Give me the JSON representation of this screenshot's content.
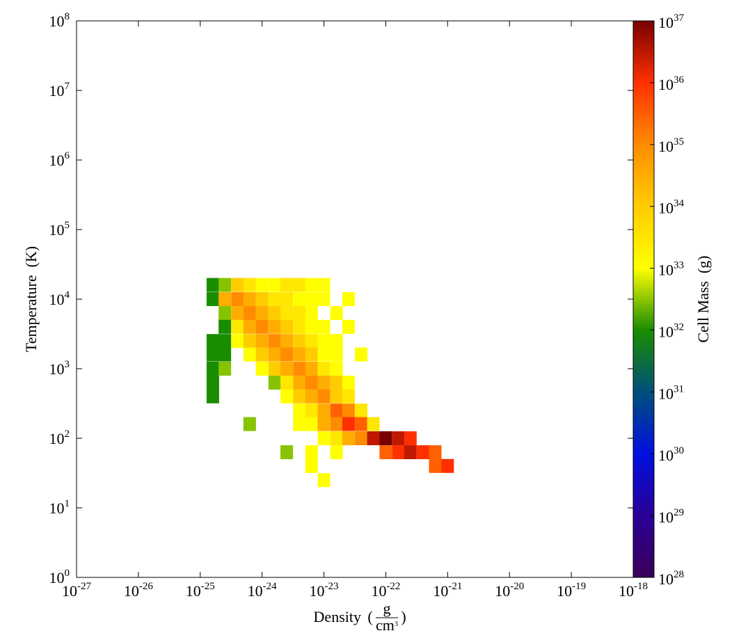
{
  "chart_data": {
    "type": "heatmap",
    "xlabel": {
      "text": "Density",
      "unit_numerator": "g",
      "unit_denominator": "cm^3"
    },
    "ylabel": "Temperature  (K)",
    "xlog": true,
    "ylog": true,
    "xlim": [
      1e-27,
      1e-18
    ],
    "ylim": [
      1,
      100000000.0
    ],
    "xticks": [
      {
        "value": 1e-27,
        "label": "10^-27"
      },
      {
        "value": 1e-26,
        "label": "10^-26"
      },
      {
        "value": 1e-25,
        "label": "10^-25"
      },
      {
        "value": 1e-24,
        "label": "10^-24"
      },
      {
        "value": 1e-23,
        "label": "10^-23"
      },
      {
        "value": 1e-22,
        "label": "10^-22"
      },
      {
        "value": 1e-21,
        "label": "10^-21"
      },
      {
        "value": 1e-20,
        "label": "10^-20"
      },
      {
        "value": 1e-19,
        "label": "10^-19"
      },
      {
        "value": 1e-18,
        "label": "10^-18"
      }
    ],
    "yticks": [
      {
        "value": 1,
        "label": "10^0"
      },
      {
        "value": 10,
        "label": "10^1"
      },
      {
        "value": 100,
        "label": "10^2"
      },
      {
        "value": 1000,
        "label": "10^3"
      },
      {
        "value": 10000,
        "label": "10^4"
      },
      {
        "value": 100000,
        "label": "10^5"
      },
      {
        "value": 1000000,
        "label": "10^6"
      },
      {
        "value": 10000000,
        "label": "10^7"
      },
      {
        "value": 100000000,
        "label": "10^8"
      }
    ],
    "colorbar": {
      "label": "Cell Mass  (g)",
      "log": true,
      "lim": [
        1e+28,
        1e+37
      ],
      "ticks": [
        {
          "value": 1e+28,
          "label": "10^28"
        },
        {
          "value": 1e+29,
          "label": "10^29"
        },
        {
          "value": 1e+30,
          "label": "10^30"
        },
        {
          "value": 1e+31,
          "label": "10^31"
        },
        {
          "value": 1e+32,
          "label": "10^32"
        },
        {
          "value": 1e+33,
          "label": "10^33"
        },
        {
          "value": 1e+34,
          "label": "10^34"
        },
        {
          "value": 1e+35,
          "label": "10^35"
        },
        {
          "value": 1e+36,
          "label": "10^36"
        },
        {
          "value": 1e+37,
          "label": "10^37"
        }
      ],
      "colors": [
        "#3b005a",
        "#2a0096",
        "#0010e0",
        "#00507a",
        "#1a8c00",
        "#ffff00",
        "#ffcc00",
        "#ff8c00",
        "#ff3000",
        "#780000"
      ]
    },
    "x": [
      1.6e-25,
      2.5e-25,
      4e-25,
      6.3e-25,
      1e-24,
      1.6e-24,
      2.5e-24,
      4e-24,
      6.3e-24,
      1e-23,
      1.6e-25,
      2.5e-25,
      4e-25,
      6.3e-25,
      1e-24,
      1.6e-24,
      2.5e-24,
      4e-24,
      6.3e-24,
      1e-23,
      2.5e-23,
      2.5e-25,
      4e-25,
      6.3e-25,
      1e-24,
      1.6e-24,
      2.5e-24,
      4e-24,
      6.3e-24,
      1.6e-23,
      2.5e-25,
      4e-25,
      6.3e-25,
      1e-24,
      1.6e-24,
      2.5e-24,
      4e-24,
      6.3e-24,
      1e-23,
      2.5e-23,
      1.6e-25,
      2.5e-25,
      4e-25,
      6.3e-25,
      1e-24,
      1.6e-24,
      2.5e-24,
      4e-24,
      6.3e-24,
      1e-23,
      1.6e-23,
      1.6e-25,
      2.5e-25,
      6.3e-25,
      1e-24,
      1.6e-24,
      2.5e-24,
      4e-24,
      6.3e-24,
      1e-23,
      1.6e-23,
      4e-23,
      1.6e-25,
      2.5e-25,
      1e-24,
      1.6e-24,
      2.5e-24,
      4e-24,
      6.3e-24,
      1e-23,
      1.6e-23,
      1.6e-25,
      1.6e-24,
      2.5e-24,
      4e-24,
      6.3e-24,
      1e-23,
      1.6e-23,
      2.5e-23,
      1.6e-25,
      2.5e-24,
      4e-24,
      6.3e-24,
      1e-23,
      1.6e-23,
      2.5e-23,
      4e-24,
      6.3e-24,
      1e-23,
      1.6e-23,
      2.5e-23,
      4e-23,
      6.3e-25,
      4e-24,
      6.3e-24,
      1e-23,
      1.6e-23,
      2.5e-23,
      4e-23,
      6.3e-23,
      1e-23,
      1.6e-23,
      2.5e-23,
      4e-23,
      6.3e-23,
      1e-22,
      1.6e-22,
      2.5e-22,
      2.5e-24,
      6.3e-24,
      1.6e-23,
      1e-22,
      1.6e-22,
      2.5e-22,
      4e-22,
      6.3e-22,
      6.3e-24,
      6.3e-22,
      1e-21,
      1e-23
    ],
    "y": [
      16000,
      16000,
      16000,
      16000,
      16000,
      16000,
      16000,
      16000,
      16000,
      16000,
      10000,
      10000,
      10000,
      10000,
      10000,
      10000,
      10000,
      10000,
      10000,
      10000,
      10000,
      6300,
      6300,
      6300,
      6300,
      6300,
      6300,
      6300,
      6300,
      6300,
      4000,
      4000,
      4000,
      4000,
      4000,
      4000,
      4000,
      4000,
      4000,
      4000,
      2500,
      2500,
      2500,
      2500,
      2500,
      2500,
      2500,
      2500,
      2500,
      2500,
      2500,
      1600,
      1600,
      1600,
      1600,
      1600,
      1600,
      1600,
      1600,
      1600,
      1600,
      1600,
      1000,
      1000,
      1000,
      1000,
      1000,
      1000,
      1000,
      1000,
      1000,
      630,
      630,
      630,
      630,
      630,
      630,
      630,
      630,
      400,
      400,
      400,
      400,
      400,
      400,
      400,
      250,
      250,
      250,
      250,
      250,
      250,
      160,
      160,
      160,
      160,
      160,
      160,
      160,
      160,
      100,
      100,
      100,
      100,
      100,
      100,
      100,
      100,
      63,
      63,
      63,
      63,
      63,
      63,
      63,
      63,
      40,
      40,
      40,
      25
    ],
    "values": [
      1e+32,
      3e+32,
      1e+34,
      3e+33,
      1e+33,
      1e+33,
      3e+33,
      3e+33,
      1e+33,
      1e+33,
      1e+32,
      3e+34,
      1e+35,
      3e+34,
      1e+34,
      3e+33,
      3e+33,
      1e+33,
      1e+33,
      1e+33,
      1e+33,
      3e+32,
      3e+34,
      1e+35,
      3e+34,
      1e+34,
      3e+33,
      3e+33,
      1e+33,
      1e+33,
      1e+32,
      3e+33,
      3e+34,
      1e+35,
      3e+34,
      1e+34,
      3e+33,
      1e+33,
      1e+33,
      1e+33,
      1e+32,
      1e+32,
      1e+33,
      1e+34,
      3e+34,
      1e+35,
      3e+34,
      1e+34,
      3e+33,
      1e+33,
      1e+33,
      1e+32,
      1e+32,
      1e+33,
      1e+34,
      3e+34,
      1e+35,
      3e+34,
      1e+34,
      1e+33,
      1e+33,
      1e+33,
      1e+32,
      3e+32,
      1e+33,
      1e+34,
      3e+34,
      1e+35,
      3e+34,
      3e+33,
      1e+33,
      1e+32,
      3e+32,
      3e+33,
      3e+34,
      1e+35,
      3e+34,
      1e+34,
      1e+33,
      1e+32,
      1e+33,
      1e+34,
      3e+34,
      1e+35,
      1e+34,
      3e+33,
      1e+33,
      3e+33,
      3e+34,
      3e+35,
      1e+35,
      3e+33,
      3e+32,
      1e+33,
      1e+33,
      3e+34,
      1e+35,
      1e+36,
      3e+35,
      3e+33,
      1e+33,
      3e+33,
      3e+34,
      1e+35,
      3e+36,
      1e+37,
      3e+36,
      1e+36,
      3e+32,
      1e+33,
      1e+33,
      3e+35,
      1e+36,
      3e+36,
      1e+36,
      3e+35,
      1e+33,
      3e+35,
      1e+36,
      1e+33
    ]
  }
}
